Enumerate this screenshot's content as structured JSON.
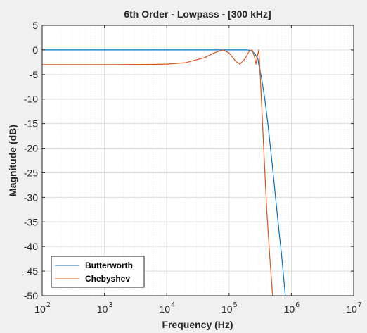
{
  "chart_data": {
    "type": "line",
    "title": "6th Order - Lowpass - [300 kHz]",
    "xlabel": "Frequency  (Hz)",
    "ylabel": "Magnitude (dB)",
    "x_scale": "log",
    "xlim": [
      100,
      10000000
    ],
    "ylim": [
      -50,
      5
    ],
    "x_ticks": [
      {
        "value": 100,
        "base": "10",
        "exp": "2"
      },
      {
        "value": 1000,
        "base": "10",
        "exp": "3"
      },
      {
        "value": 10000,
        "base": "10",
        "exp": "4"
      },
      {
        "value": 100000,
        "base": "10",
        "exp": "5"
      },
      {
        "value": 1000000,
        "base": "10",
        "exp": "6"
      },
      {
        "value": 10000000,
        "base": "10",
        "exp": "7"
      }
    ],
    "y_ticks": [
      5,
      0,
      -5,
      -10,
      -15,
      -20,
      -25,
      -30,
      -35,
      -40,
      -45,
      -50
    ],
    "grid": true,
    "minor_grid": true,
    "legend_position": "bottom-left",
    "series": [
      {
        "name": "Butterworth",
        "color": "#0072bd",
        "points": [
          [
            100,
            0
          ],
          [
            10000,
            0
          ],
          [
            100000,
            0
          ],
          [
            200000,
            0
          ],
          [
            230000,
            -0.2
          ],
          [
            260000,
            -0.8
          ],
          [
            290000,
            -1.8
          ],
          [
            300000,
            -3
          ],
          [
            330000,
            -5.5
          ],
          [
            370000,
            -9.5
          ],
          [
            420000,
            -15
          ],
          [
            500000,
            -24
          ],
          [
            600000,
            -34
          ],
          [
            700000,
            -42
          ],
          [
            800000,
            -50
          ]
        ]
      },
      {
        "name": "Chebyshev",
        "color": "#d95319",
        "points": [
          [
            100,
            -3
          ],
          [
            1000,
            -3
          ],
          [
            5000,
            -2.97
          ],
          [
            10000,
            -2.9
          ],
          [
            20000,
            -2.6
          ],
          [
            40000,
            -1.6
          ],
          [
            60000,
            -0.5
          ],
          [
            80000,
            0
          ],
          [
            100000,
            -0.6
          ],
          [
            130000,
            -2.4
          ],
          [
            150000,
            -2.9
          ],
          [
            180000,
            -1.8
          ],
          [
            210000,
            -0.3
          ],
          [
            235000,
            0
          ],
          [
            255000,
            -1.4
          ],
          [
            270000,
            -2.9
          ],
          [
            285000,
            -1.2
          ],
          [
            300000,
            0
          ],
          [
            310000,
            -3
          ],
          [
            330000,
            -10
          ],
          [
            360000,
            -20
          ],
          [
            400000,
            -32
          ],
          [
            450000,
            -42
          ],
          [
            500000,
            -50
          ]
        ]
      }
    ]
  }
}
